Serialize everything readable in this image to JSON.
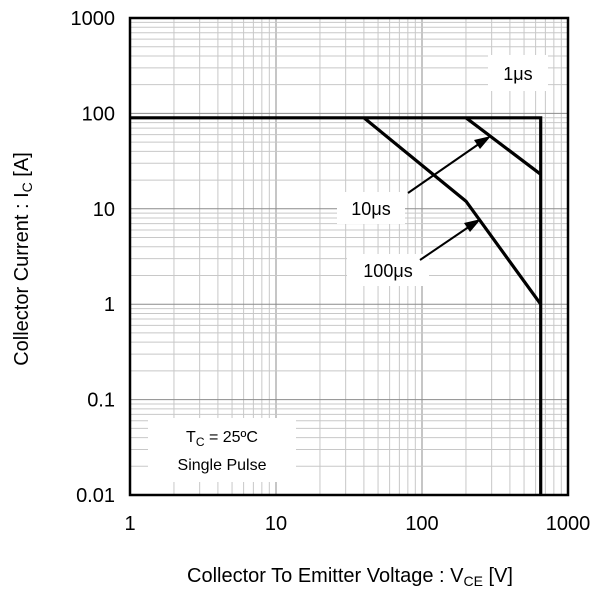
{
  "chart_data": {
    "type": "line",
    "x_scale": "log",
    "y_scale": "log",
    "xlim": [
      1,
      1000
    ],
    "ylim": [
      0.01,
      1000
    ],
    "grid": true,
    "x_ticks": [
      "1",
      "10",
      "100",
      "1000"
    ],
    "y_ticks": [
      "0.01",
      "0.1",
      "1",
      "10",
      "100",
      "1000"
    ],
    "xlabel": {
      "main": "Collector To Emitter Voltage : V",
      "sub": "CE",
      "unit": " [V]"
    },
    "ylabel": {
      "main": "Collector Current : I",
      "sub": "C",
      "unit": " [A]"
    },
    "series": [
      {
        "name": "1μs",
        "x": [
          1,
          650,
          650
        ],
        "y": [
          90,
          90,
          0.01
        ]
      },
      {
        "name": "10μs",
        "x": [
          200,
          650
        ],
        "y": [
          90,
          23
        ]
      },
      {
        "name": "100μs",
        "x": [
          40,
          200,
          650
        ],
        "y": [
          90,
          12,
          1
        ]
      }
    ],
    "annotations": {
      "label_1us": "1μs",
      "label_10us": "10μs",
      "label_100us": "100μs",
      "conditions_line1_main": "T",
      "conditions_line1_sub": "C",
      "conditions_line1_rest": " = 25ºC",
      "conditions_line2": "Single Pulse"
    }
  }
}
